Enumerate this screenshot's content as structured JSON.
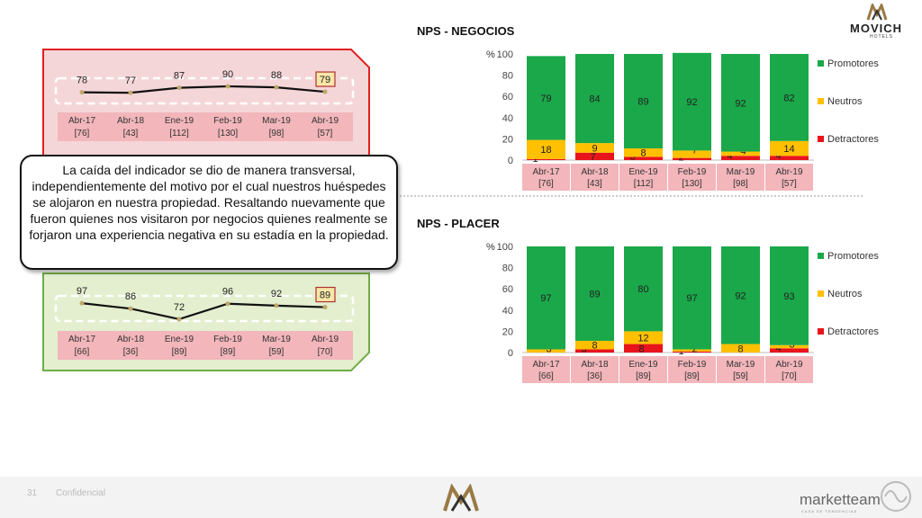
{
  "brand": {
    "name": "MOVICH",
    "sub": "HOTELS"
  },
  "footer": {
    "page": "31",
    "confidential": "Confidencial",
    "agency": "marketteam",
    "agency_sub": "CASA DE TENDENCIAS"
  },
  "callout": {
    "text": "La caída del indicador se dio de manera transversal, independientemente del motivo por el cual nuestros huéspedes se alojaron en nuestra propiedad. Resaltando nuevamente que fueron quienes nos visitaron por negocios quienes realmente se forjaron una experiencia negativa en su estadía en la propiedad."
  },
  "colors": {
    "promotores": "#1aa84a",
    "neutros": "#ffc000",
    "detractores": "#e8141c",
    "red_panel": "#f5d6d8",
    "red_border": "#e02020",
    "green_panel": "#e3efcf",
    "green_border": "#70ad47"
  },
  "chart_data": [
    {
      "type": "line",
      "title": "",
      "categories": [
        "Abr-17",
        "Abr-18",
        "Ene-19",
        "Feb-19",
        "Mar-19",
        "Abr-19"
      ],
      "bases": [
        "[76]",
        "[43]",
        "[112]",
        "[130]",
        "[98]",
        "[57]"
      ],
      "values": [
        78,
        77,
        87,
        90,
        88,
        79
      ],
      "highlight": "79",
      "panel": "red"
    },
    {
      "type": "line",
      "title": "",
      "categories": [
        "Abr-17",
        "Abr-18",
        "Ene-19",
        "Feb-19",
        "Mar-19",
        "Abr-19"
      ],
      "bases": [
        "[66]",
        "[36]",
        "[89]",
        "[89]",
        "[59]",
        "[70]"
      ],
      "values": [
        97,
        86,
        72,
        96,
        92,
        89
      ],
      "highlight": "89",
      "panel": "green"
    },
    {
      "type": "bar",
      "stacked": true,
      "title": "NPS - NEGOCIOS",
      "ylabel": "%",
      "ylim": [
        0,
        100
      ],
      "yticks": [
        "0",
        "20",
        "40",
        "60",
        "80",
        "100"
      ],
      "categories": [
        "Abr-17",
        "Abr-18",
        "Ene-19",
        "Feb-19",
        "Mar-19",
        "Abr-19"
      ],
      "bases": [
        "[76]",
        "[43]",
        "[112]",
        "[130]",
        "[98]",
        "[57]"
      ],
      "legend_position": "right",
      "series": [
        {
          "name": "Detractores",
          "values": [
            1,
            7,
            3,
            2,
            4,
            4
          ]
        },
        {
          "name": "Neutros",
          "values": [
            18,
            9,
            8,
            7,
            4,
            14
          ]
        },
        {
          "name": "Promotores",
          "values": [
            79,
            84,
            89,
            92,
            92,
            82
          ]
        }
      ]
    },
    {
      "type": "bar",
      "stacked": true,
      "title": "NPS - PLACER",
      "ylabel": "%",
      "ylim": [
        0,
        100
      ],
      "yticks": [
        "0",
        "20",
        "40",
        "60",
        "80",
        "100"
      ],
      "categories": [
        "Abr-17",
        "Abr-18",
        "Ene-19",
        "Feb-19",
        "Mar-19",
        "Abr-19"
      ],
      "bases": [
        "[66]",
        "[36]",
        "[89]",
        "[89]",
        "[59]",
        "[70]"
      ],
      "legend_position": "right",
      "series": [
        {
          "name": "Detractores",
          "values": [
            0,
            3,
            8,
            1,
            0,
            4
          ]
        },
        {
          "name": "Neutros",
          "values": [
            3,
            8,
            12,
            2,
            8,
            3
          ]
        },
        {
          "name": "Promotores",
          "values": [
            97,
            89,
            80,
            97,
            92,
            93
          ]
        }
      ]
    }
  ]
}
